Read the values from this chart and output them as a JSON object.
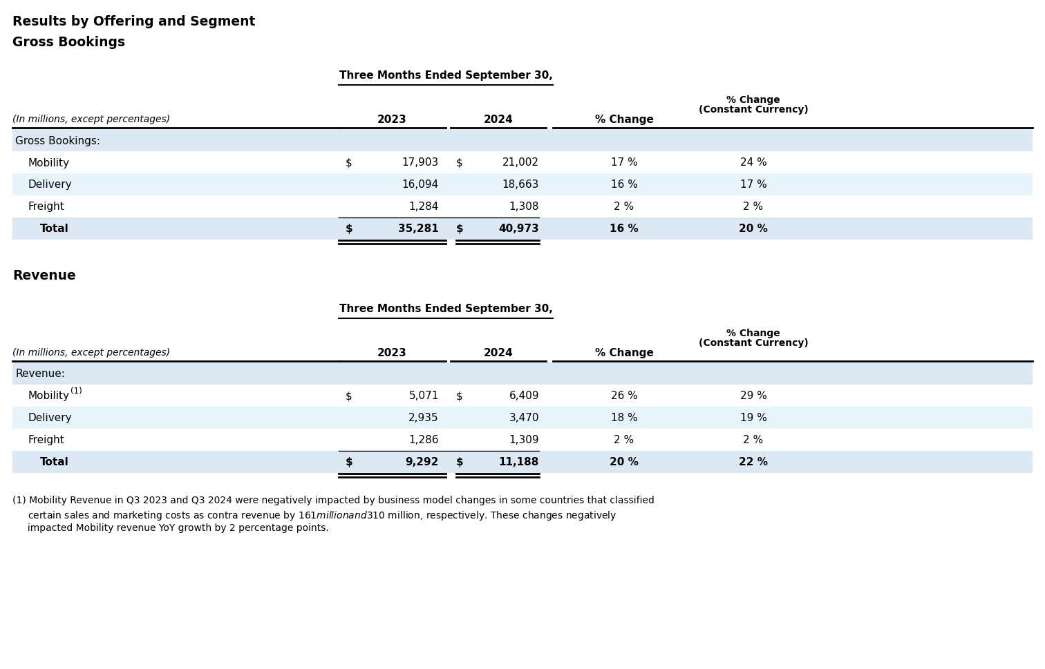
{
  "title1": "Results by Offering and Segment",
  "title2": "Gross Bookings",
  "title3": "Revenue",
  "header_period": "Three Months Ended September 30,",
  "subheader": "(In millions, except percentages)",
  "col_2023": "2023",
  "col_2024": "2024",
  "col_pct_change": "% Change",
  "col_pct_cc_line1": "% Change",
  "col_pct_cc_line2": "(Constant Currency)",
  "gb_section_label": "Gross Bookings:",
  "gb_rows": [
    {
      "label": "Mobility",
      "dollar1": true,
      "val2023": "17,903",
      "dollar2": true,
      "val2024": "21,002",
      "pct_change": "17 %",
      "pct_cc": "24 %"
    },
    {
      "label": "Delivery",
      "dollar1": false,
      "val2023": "16,094",
      "dollar2": false,
      "val2024": "18,663",
      "pct_change": "16 %",
      "pct_cc": "17 %"
    },
    {
      "label": "Freight",
      "dollar1": false,
      "val2023": "1,284",
      "dollar2": false,
      "val2024": "1,308",
      "pct_change": "2 %",
      "pct_cc": "2 %"
    }
  ],
  "gb_total": {
    "label": "Total",
    "dollar1": true,
    "val2023": "35,281",
    "dollar2": true,
    "val2024": "40,973",
    "pct_change": "16 %",
    "pct_cc": "20 %"
  },
  "rev_section_label": "Revenue:",
  "rev_rows": [
    {
      "label": "Mobility",
      "superscript": "(1)",
      "dollar1": true,
      "val2023": "5,071",
      "dollar2": true,
      "val2024": "6,409",
      "pct_change": "26 %",
      "pct_cc": "29 %"
    },
    {
      "label": "Delivery",
      "superscript": "",
      "dollar1": false,
      "val2023": "2,935",
      "dollar2": false,
      "val2024": "3,470",
      "pct_change": "18 %",
      "pct_cc": "19 %"
    },
    {
      "label": "Freight",
      "superscript": "",
      "dollar1": false,
      "val2023": "1,286",
      "dollar2": false,
      "val2024": "1,309",
      "pct_change": "2 %",
      "pct_cc": "2 %"
    }
  ],
  "rev_total": {
    "label": "Total",
    "dollar1": true,
    "val2023": "9,292",
    "dollar2": true,
    "val2024": "11,188",
    "pct_change": "20 %",
    "pct_cc": "22 %"
  },
  "footnote_line1": "(1) Mobility Revenue in Q3 2023 and Q3 2024 were negatively impacted by business model changes in some countries that classified",
  "footnote_line2": "     certain sales and marketing costs as contra revenue by $161 million and $310 million, respectively. These changes negatively",
  "footnote_line3": "     impacted Mobility revenue YoY growth by 2 percentage points.",
  "bg_color": "#ffffff",
  "section_bg": "#dce9f5",
  "row_bg_alt": "#e8f4fb",
  "row_bg_white": "#ffffff"
}
